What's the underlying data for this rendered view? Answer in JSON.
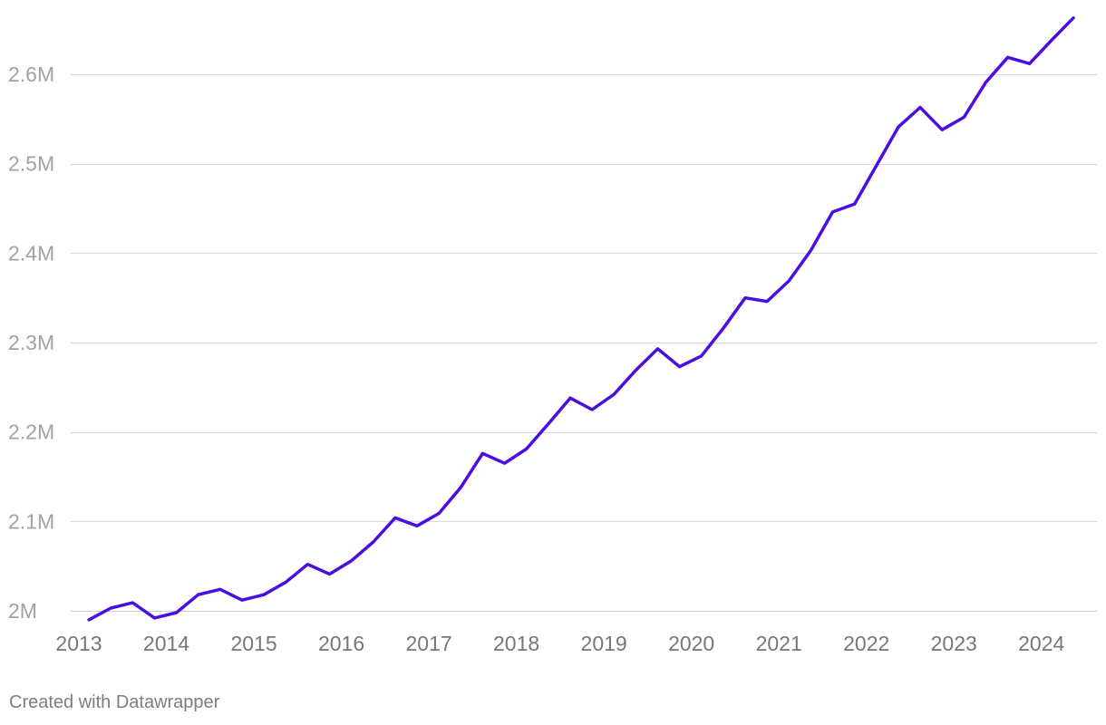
{
  "chart_data": {
    "type": "line",
    "title": "",
    "xlabel": "",
    "ylabel": "",
    "x_ticks": [
      "2013",
      "2014",
      "2015",
      "2016",
      "2017",
      "2018",
      "2019",
      "2020",
      "2021",
      "2022",
      "2023",
      "2024"
    ],
    "y_ticks": [
      {
        "value": 2000000,
        "label": "2M"
      },
      {
        "value": 2100000,
        "label": "2.1M"
      },
      {
        "value": 2200000,
        "label": "2.2M"
      },
      {
        "value": 2300000,
        "label": "2.3M"
      },
      {
        "value": 2400000,
        "label": "2.4M"
      },
      {
        "value": 2500000,
        "label": "2.5M"
      },
      {
        "value": 2600000,
        "label": "2.6M"
      }
    ],
    "xlim": [
      "2013-01-01",
      "2024-12-31"
    ],
    "ylim": [
      2000000,
      2650000
    ],
    "grid": true,
    "color": "#4a0fe0",
    "series": [
      {
        "x": [
          "2013-03",
          "2013-06",
          "2013-09",
          "2013-12",
          "2014-03",
          "2014-06",
          "2014-09",
          "2014-12",
          "2015-03",
          "2015-06",
          "2015-09",
          "2015-12",
          "2016-03",
          "2016-06",
          "2016-09",
          "2016-12",
          "2017-03",
          "2017-06",
          "2017-09",
          "2017-12",
          "2018-03",
          "2018-06",
          "2018-09",
          "2018-12",
          "2019-03",
          "2019-06",
          "2019-09",
          "2019-12",
          "2020-03",
          "2020-06",
          "2020-09",
          "2020-12",
          "2021-03",
          "2021-06",
          "2021-09",
          "2021-12",
          "2022-03",
          "2022-06",
          "2022-09",
          "2022-12",
          "2023-03",
          "2023-06",
          "2023-09",
          "2023-12",
          "2024-03",
          "2024-06"
        ],
        "y": [
          1990000,
          2003000,
          2009000,
          1992000,
          1998000,
          2018000,
          2024000,
          2012000,
          2018000,
          2032000,
          2052000,
          2041000,
          2056000,
          2077000,
          2104000,
          2095000,
          2109000,
          2138000,
          2176000,
          2165000,
          2181000,
          2209000,
          2238000,
          2225000,
          2242000,
          2269000,
          2293000,
          2273000,
          2285000,
          2316000,
          2350000,
          2346000,
          2369000,
          2403000,
          2446000,
          2455000,
          2498000,
          2541000,
          2563000,
          2538000,
          2552000,
          2591000,
          2619000,
          2612000,
          2638000,
          2663000
        ]
      }
    ]
  },
  "footer": {
    "credit": "Created with Datawrapper"
  }
}
